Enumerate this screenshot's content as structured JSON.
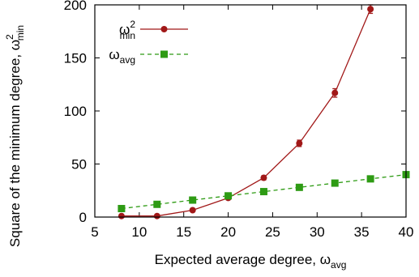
{
  "chart_data": {
    "type": "line",
    "xlabel": "Expected average degree, ω",
    "xlabel_sub": "avg",
    "ylabel": "Square of the minimum degree, ω",
    "ylabel_sup": "2",
    "ylabel_sub": "min",
    "xlim": [
      5,
      40
    ],
    "ylim": [
      0,
      200
    ],
    "xticks": [
      5,
      10,
      15,
      20,
      25,
      30,
      35,
      40
    ],
    "yticks": [
      0,
      50,
      100,
      150,
      200
    ],
    "legend_position": "top-left",
    "grid": false,
    "series": [
      {
        "name": "ω",
        "name_sup": "2",
        "name_sub": "min",
        "color": "#a11818",
        "marker": "circle",
        "line": "solid",
        "x": [
          8,
          12,
          16,
          20,
          24,
          28,
          32,
          36
        ],
        "y": [
          1,
          1,
          6.5,
          18,
          37,
          69.5,
          117,
          196
        ],
        "err": [
          0.5,
          0.5,
          1,
          1.5,
          2,
          3,
          4,
          4
        ]
      },
      {
        "name": "ω",
        "name_sub": "avg",
        "color": "#2e9b14",
        "marker": "square",
        "line": "dashed",
        "x": [
          8,
          12,
          16,
          20,
          24,
          28,
          32,
          36,
          40
        ],
        "y": [
          8,
          12,
          16,
          20,
          24,
          28,
          32,
          36,
          40
        ],
        "err": []
      }
    ]
  }
}
